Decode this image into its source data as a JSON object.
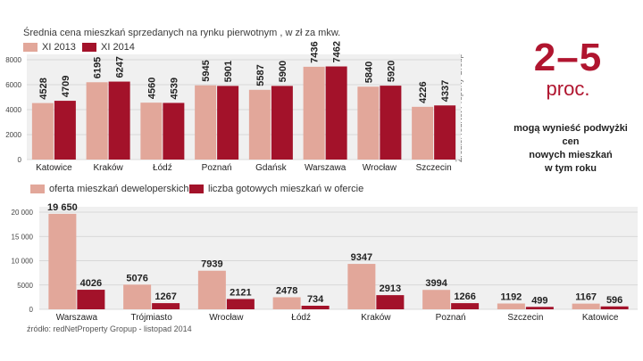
{
  "colors": {
    "series_a": "#e2a79a",
    "series_b": "#a3122a",
    "panel_bg": "#f0f0f0",
    "headline": "#b0152f"
  },
  "headline": {
    "range": "2–5",
    "unit": "proc.",
    "lines": [
      "mogą wynieść podwyżki cen",
      "nowych mieszkań",
      "w tym roku"
    ]
  },
  "chart_data": [
    {
      "type": "bar",
      "title": "Średnia cena mieszkań sprzedanych na rynku pierwotnym , w zł za mkw.",
      "source": "Źródło: redNet Property Group",
      "categories": [
        "Katowice",
        "Kraków",
        "Łódź",
        "Poznań",
        "Gdańsk",
        "Warszawa",
        "Wrocław",
        "Szczecin"
      ],
      "series": [
        {
          "name": "XI 2013",
          "values": [
            4528,
            6195,
            4560,
            5945,
            5587,
            7436,
            5840,
            4226
          ]
        },
        {
          "name": "XI 2014",
          "values": [
            4709,
            6247,
            4539,
            5901,
            5900,
            7462,
            5920,
            4337
          ]
        }
      ],
      "ylim": [
        0,
        8000
      ],
      "yticks": [
        "0",
        "2000",
        "4000",
        "6000",
        "8000"
      ]
    },
    {
      "type": "bar",
      "title": "",
      "source": "źródło: redNetProperty Gropup - listopad 2014",
      "categories": [
        "Warszawa",
        "Trójmiasto",
        "Wrocław",
        "Łódź",
        "Kraków",
        "Poznań",
        "Szczecin",
        "Katowice"
      ],
      "series": [
        {
          "name": "oferta mieszkań deweloperskich",
          "values": [
            19650,
            5076,
            7939,
            2478,
            9347,
            3994,
            1192,
            1167
          ],
          "labels": [
            "19 650",
            "5076",
            "7939",
            "2478",
            "9347",
            "3994",
            "1192",
            "1167"
          ]
        },
        {
          "name": "liczba gotowych mieszkań w ofercie",
          "values": [
            4026,
            1267,
            2121,
            734,
            2913,
            1266,
            499,
            596
          ],
          "labels": [
            "4026",
            "1267",
            "2121",
            "734",
            "2913",
            "1266",
            "499",
            "596"
          ]
        }
      ],
      "ylim": [
        0,
        20000
      ],
      "yticks": [
        "0",
        "5000",
        "10 000",
        "15 000",
        "20 000"
      ]
    }
  ]
}
